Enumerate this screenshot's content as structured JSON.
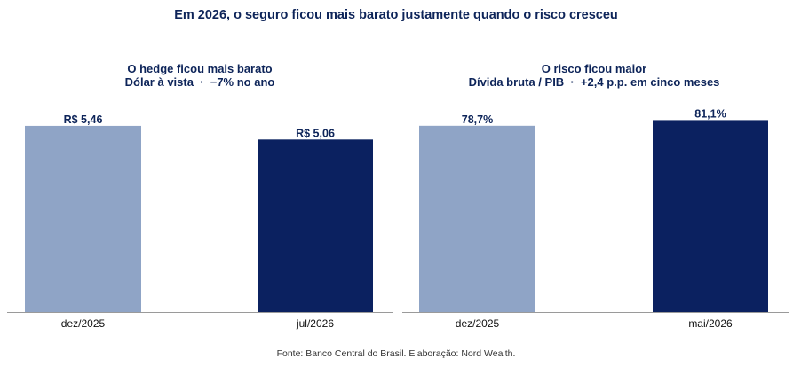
{
  "title": "Em 2026, o seguro ficou mais barato justamente quando o risco cresceu",
  "source": "Fonte: Banco Central do Brasil. Elaboração: Nord Wealth.",
  "colors": {
    "text": "#0d2459",
    "light_bar": "#8fa4c6",
    "dark_bar": "#0b2160",
    "axis": "#9a9a9a",
    "source_text": "#333333"
  },
  "chart_data": [
    {
      "type": "bar",
      "title": "O hedge ficou mais barato",
      "subtitle": "Dólar à vista  ·  −7% no ano",
      "xlabel": "",
      "ylabel": "",
      "categories": [
        "dez/2025",
        "jul/2026"
      ],
      "values": [
        5.46,
        5.06
      ],
      "data_labels": [
        "R$ 5,46",
        "R$ 5,06"
      ],
      "bar_colors": [
        "#8fa4c6",
        "#0b2160"
      ],
      "ylim": [
        0,
        5.9
      ],
      "grid": false,
      "legend": "none"
    },
    {
      "type": "bar",
      "title": "O risco ficou maior",
      "subtitle": "Dívida bruta / PIB  ·  +2,4 p.p. em cinco meses",
      "xlabel": "",
      "ylabel": "",
      "categories": [
        "dez/2025",
        "mai/2026"
      ],
      "values": [
        78.7,
        81.1
      ],
      "data_labels": [
        "78,7%",
        "81,1%"
      ],
      "bar_colors": [
        "#8fa4c6",
        "#0b2160"
      ],
      "ylim": [
        0,
        85
      ],
      "grid": false,
      "legend": "none"
    }
  ]
}
